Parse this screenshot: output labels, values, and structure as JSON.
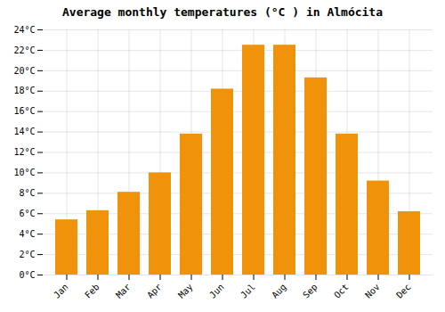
{
  "chart_data": {
    "type": "bar",
    "title": "Average monthly temperatures (°C ) in Almócita",
    "categories": [
      "Jan",
      "Feb",
      "Mar",
      "Apr",
      "May",
      "Jun",
      "Jul",
      "Aug",
      "Sep",
      "Oct",
      "Nov",
      "Dec"
    ],
    "values": [
      5.4,
      6.3,
      8.1,
      10.0,
      13.8,
      18.2,
      22.5,
      22.5,
      19.3,
      13.8,
      9.2,
      6.2
    ],
    "color": "#F0920A",
    "ylim": [
      0,
      24
    ],
    "yticks": [
      {
        "value": 0,
        "label": "0°C"
      },
      {
        "value": 2,
        "label": "2°C"
      },
      {
        "value": 4,
        "label": "4°C"
      },
      {
        "value": 6,
        "label": "6°C"
      },
      {
        "value": 8,
        "label": "8°C"
      },
      {
        "value": 10,
        "label": "10°C"
      },
      {
        "value": 12,
        "label": "12°C"
      },
      {
        "value": 14,
        "label": "14°C"
      },
      {
        "value": 16,
        "label": "16°C"
      },
      {
        "value": 18,
        "label": "18°C"
      },
      {
        "value": 20,
        "label": "20°C"
      },
      {
        "value": 22,
        "label": "22°C"
      },
      {
        "value": 24,
        "label": "24°C"
      }
    ],
    "grid": true
  }
}
